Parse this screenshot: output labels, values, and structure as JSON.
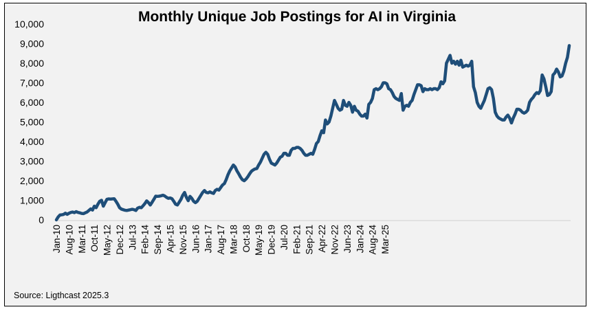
{
  "chart_data": {
    "type": "line",
    "title": "Monthly Unique Job Postings for AI in Virginia",
    "xlabel": "",
    "ylabel": "",
    "ylim": [
      0,
      10000
    ],
    "y_ticks": [
      "0",
      "1,000",
      "2,000",
      "3,000",
      "4,000",
      "5,000",
      "6,000",
      "7,000",
      "8,000",
      "9,000",
      "10,000"
    ],
    "x_ticks": [
      "Jan-10",
      "Aug-10",
      "Mar-11",
      "Oct-11",
      "May-12",
      "Dec-12",
      "Jul-13",
      "Feb-14",
      "Sep-14",
      "Apr-15",
      "Nov-15",
      "Jun-16",
      "Jan-17",
      "Aug-17",
      "Mar-18",
      "Oct-18",
      "May-19",
      "Dec-19",
      "Jul-20",
      "Feb-21",
      "Sep-21",
      "Apr-22",
      "Nov-22",
      "Jun-23",
      "Jan-24",
      "Aug-24",
      "Mar-25"
    ],
    "line_color": "#1f4e79",
    "grid": false,
    "series": [
      {
        "name": "Monthly Unique Job Postings for AI",
        "start": "Jan-10",
        "frequency": "monthly",
        "values": [
          0,
          150,
          250,
          260,
          280,
          340,
          280,
          340,
          380,
          400,
          370,
          420,
          380,
          360,
          330,
          320,
          360,
          400,
          480,
          560,
          500,
          700,
          620,
          800,
          950,
          1000,
          700,
          880,
          1050,
          1070,
          1060,
          1070,
          1080,
          950,
          800,
          620,
          550,
          520,
          490,
          480,
          500,
          520,
          540,
          520,
          480,
          600,
          640,
          620,
          720,
          830,
          970,
          880,
          760,
          900,
          1050,
          1210,
          1200,
          1210,
          1230,
          1260,
          1220,
          1150,
          1100,
          1120,
          1080,
          950,
          800,
          760,
          900,
          1050,
          1260,
          1400,
          1150,
          980,
          1200,
          1100,
          950,
          880,
          950,
          1100,
          1250,
          1400,
          1500,
          1400,
          1380,
          1430,
          1380,
          1350,
          1500,
          1560,
          1520,
          1650,
          1780,
          1850,
          2050,
          2300,
          2500,
          2650,
          2800,
          2700,
          2500,
          2350,
          2180,
          2050,
          2000,
          2080,
          2200,
          2350,
          2480,
          2550,
          2600,
          2620,
          2800,
          2950,
          3150,
          3350,
          3450,
          3350,
          3100,
          2900,
          2850,
          2800,
          2900,
          3050,
          3200,
          3250,
          3400,
          3400,
          3300,
          3300,
          3550,
          3650,
          3650,
          3700,
          3700,
          3650,
          3550,
          3400,
          3300,
          3300,
          3350,
          3400,
          3350,
          3600,
          3900,
          4000,
          4300,
          4550,
          4450,
          5100,
          4900,
          5000,
          5300,
          5700,
          6100,
          5900,
          5700,
          5600,
          5650,
          6100,
          5850,
          5800,
          6000,
          5850,
          5500,
          5800,
          5600,
          5550,
          5400,
          5300,
          5300,
          5400,
          5200,
          5900,
          6000,
          6200,
          6650,
          6700,
          6650,
          6700,
          6800,
          7000,
          7000,
          6950,
          6700,
          6650,
          6500,
          6300,
          6200,
          6150,
          6100,
          6450,
          5600,
          5800,
          5850,
          5800,
          6000,
          6100,
          6400,
          6650,
          6900,
          6900,
          6850,
          6550,
          6700,
          6650,
          6650,
          6700,
          6650,
          6700,
          6700,
          6650,
          6750,
          7050,
          6950,
          7100,
          8000,
          8200,
          8400,
          8000,
          8100,
          7950,
          8100,
          7900,
          8150,
          7800,
          7850,
          7900,
          7850,
          7900,
          8100,
          6800,
          6500,
          6000,
          5800,
          5700,
          5900,
          6100,
          6400,
          6700,
          6750,
          6650,
          6200,
          5500,
          5300,
          5200,
          5150,
          5100,
          5100,
          5250,
          5350,
          5200,
          4950,
          5200,
          5400,
          5650,
          5650,
          5600,
          5500,
          5450,
          5500,
          5600,
          6000,
          6150,
          6250,
          6400,
          6500,
          6450,
          6600,
          7400,
          7200,
          6800,
          6350,
          6400,
          6550,
          7400,
          7500,
          7700,
          7550,
          7300,
          7350,
          7600,
          8000,
          8300,
          8900
        ]
      }
    ],
    "source": "Source: Ligthcast 2025.3"
  }
}
